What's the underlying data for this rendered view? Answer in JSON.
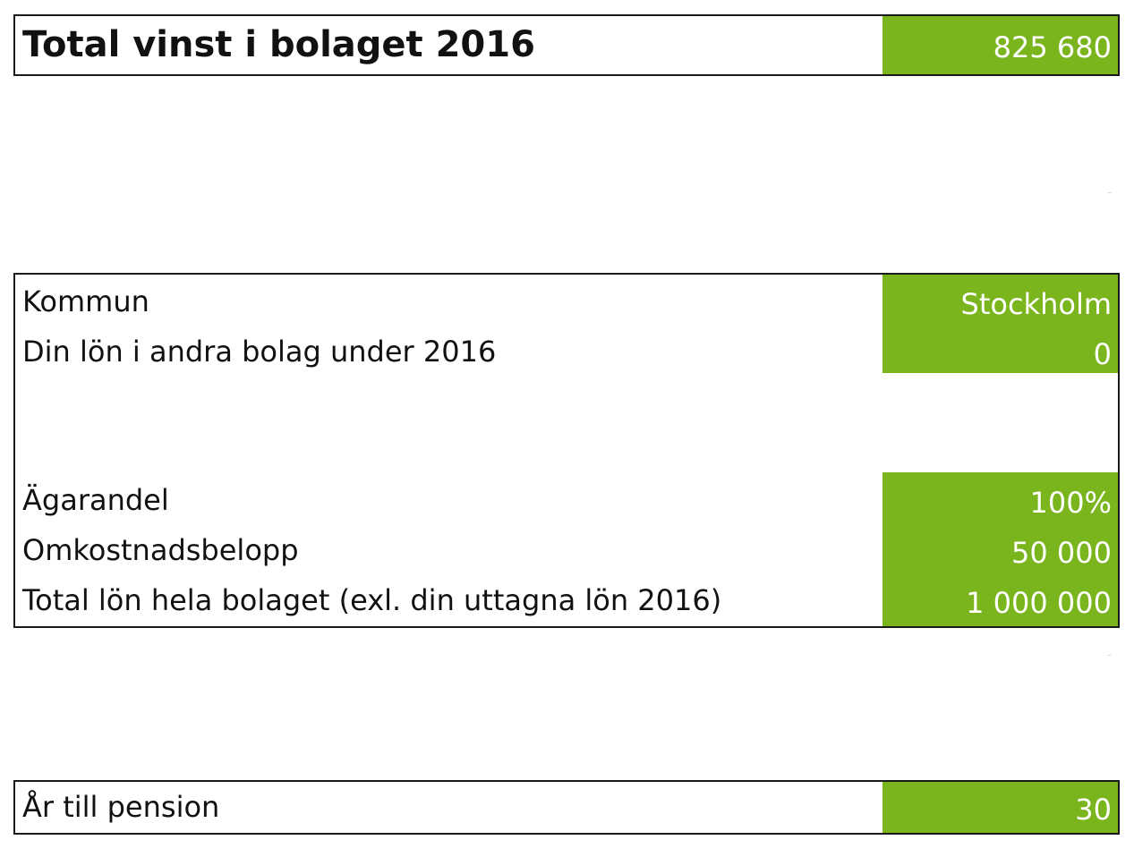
{
  "colors": {
    "accent": "#7ab51d",
    "border": "#1a1a1a",
    "text": "#111111"
  },
  "total": {
    "title": "Total vinst i bolaget 2016",
    "value": "825 680"
  },
  "settings": {
    "kommun_label": "Kommun",
    "kommun_value": "Stockholm",
    "lon_label": "Din lön i andra bolag under 2016",
    "lon_value": "0",
    "agarandel_label": "Ägarandel",
    "agarandel_value": "100%",
    "omkostnad_label": "Omkostnadsbelopp",
    "omkostnad_value": "50 000",
    "totallon_label": "Total lön hela bolaget (exl. din uttagna lön 2016)",
    "totallon_value": "1 000 000"
  },
  "pension": {
    "label": "År till pension",
    "value": "30"
  }
}
